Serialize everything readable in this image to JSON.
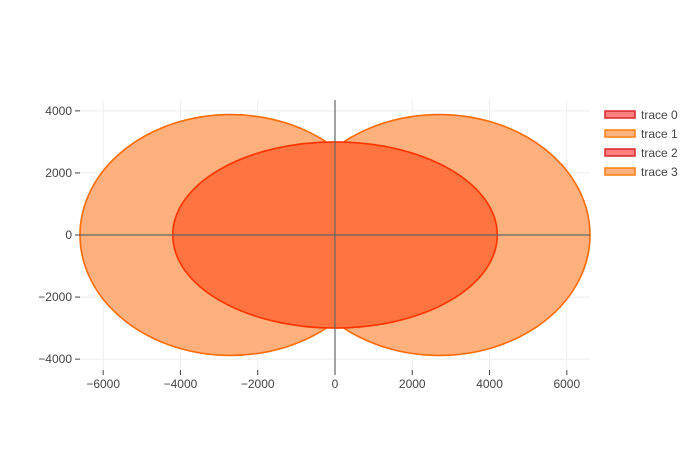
{
  "chart_data": {
    "type": "area",
    "title": "",
    "xlabel": "",
    "ylabel": "",
    "xlim": [
      -6600,
      6600
    ],
    "ylim": [
      -4350,
      4350
    ],
    "x_ticks": [
      -6000,
      -4000,
      -2000,
      0,
      2000,
      4000,
      6000
    ],
    "y_ticks": [
      -4000,
      -2000,
      0,
      2000,
      4000
    ],
    "x_tick_labels": [
      "−6000",
      "−4000",
      "−2000",
      "0",
      "2000",
      "4000",
      "6000"
    ],
    "y_tick_labels": [
      "−4000",
      "−2000",
      "0",
      "2000",
      "4000"
    ],
    "grid": true,
    "legend_position": "top-right",
    "series": [
      {
        "name": "trace 0",
        "shape": "ellipse",
        "cx": 0,
        "cy": 0,
        "rx": 4200,
        "ry": 3000,
        "line_color": "#d62728",
        "fill_color": "#ff8080"
      },
      {
        "name": "trace 1",
        "shape": "lobes",
        "rx": 6600,
        "ry": 3880,
        "line_color": "#ff7f0e",
        "fill_color": "#ffb27d"
      },
      {
        "name": "trace 2",
        "shape": "ellipse",
        "cx": 0,
        "cy": 0,
        "rx": 4200,
        "ry": 3000,
        "line_color": "#d62728",
        "fill_color": "#ff8080"
      },
      {
        "name": "trace 3",
        "shape": "lobes",
        "rx": 6600,
        "ry": 3880,
        "line_color": "#ff7f0e",
        "fill_color": "#ffb27d"
      }
    ],
    "render": {
      "ellipse_fill": "#ff7440",
      "ellipse_line": "#ff3300",
      "lobe_fill": "#ffb07c",
      "lobe_line": "#ff6a00",
      "axis_zero_line": "#666666",
      "grid_color": "#eeeeee"
    }
  }
}
